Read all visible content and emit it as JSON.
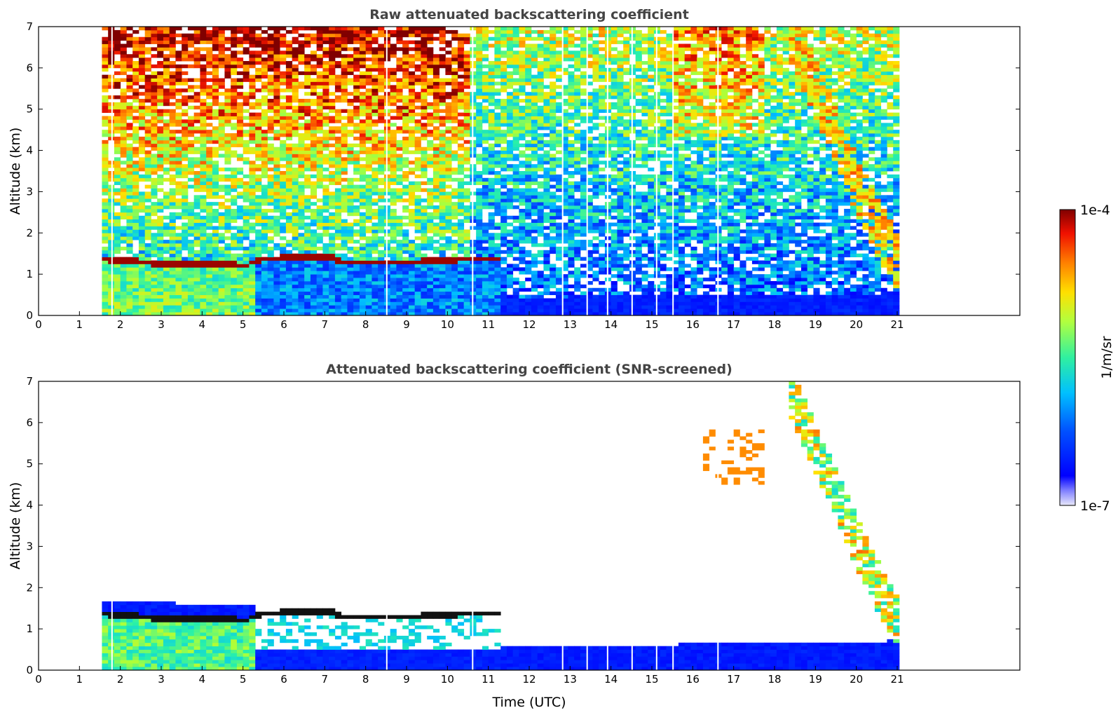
{
  "chart_data": [
    {
      "type": "heatmap",
      "title": "Raw attenuated backscattering coefficient",
      "xlabel": "",
      "ylabel": "Altitude (km)",
      "xlim": [
        0,
        24
      ],
      "ylim": [
        0,
        7
      ],
      "x_ticks": [
        0,
        1,
        2,
        3,
        4,
        5,
        6,
        7,
        8,
        9,
        10,
        11,
        12,
        13,
        14,
        15,
        16,
        17,
        18,
        19,
        20,
        21
      ],
      "y_ticks": [
        0,
        1,
        2,
        3,
        4,
        5,
        6,
        7
      ],
      "data_time_range": [
        1.55,
        21.05
      ],
      "features": {
        "cloud_base_height_km": [
          {
            "t": 1.55,
            "z": 1.38
          },
          {
            "t": 2.5,
            "z": 1.3
          },
          {
            "t": 3.2,
            "z": 1.23
          },
          {
            "t": 4.5,
            "z": 1.27
          },
          {
            "t": 5.1,
            "z": 1.2
          },
          {
            "t": 5.3,
            "z": 1.35
          },
          {
            "t": 6.5,
            "z": 1.42
          },
          {
            "t": 7.0,
            "z": 1.45
          },
          {
            "t": 7.5,
            "z": 1.28
          },
          {
            "t": 8.5,
            "z": 1.3
          },
          {
            "t": 9.2,
            "z": 1.3
          },
          {
            "t": 10.6,
            "z": 1.38
          },
          {
            "t": 11.3,
            "z": 1.38
          }
        ],
        "boundary_layer_top_km": [
          {
            "t": 1.55,
            "z": 1.3
          },
          {
            "t": 5.3,
            "z": 1.2
          },
          {
            "t": 5.5,
            "z": 0.5
          },
          {
            "t": 12.0,
            "z": 0.45
          },
          {
            "t": 18.0,
            "z": 0.5
          },
          {
            "t": 21.05,
            "z": 0.55
          }
        ],
        "descending_cloud_km": [
          {
            "t": 18.4,
            "z": 6.6
          },
          {
            "t": 19.0,
            "z": 5.3
          },
          {
            "t": 19.5,
            "z": 4.2
          },
          {
            "t": 20.0,
            "z": 3.0
          },
          {
            "t": 20.5,
            "z": 2.0
          },
          {
            "t": 21.05,
            "z": 1.0
          }
        ]
      }
    },
    {
      "type": "heatmap",
      "title": "Attenuated backscattering coefficient (SNR-screened)",
      "xlabel": "Time (UTC)",
      "ylabel": "Altitude (km)",
      "xlim": [
        0,
        24
      ],
      "ylim": [
        0,
        7
      ],
      "x_ticks": [
        0,
        1,
        2,
        3,
        4,
        5,
        6,
        7,
        8,
        9,
        10,
        11,
        12,
        13,
        14,
        15,
        16,
        17,
        18,
        19,
        20,
        21
      ],
      "y_ticks": [
        0,
        1,
        2,
        3,
        4,
        5,
        6,
        7
      ],
      "data_time_range": [
        1.55,
        21.05
      ]
    }
  ],
  "colorbar": {
    "label": "1/m/sr",
    "min_label": "1e-7",
    "max_label": "1e-4",
    "scale": "log",
    "colormap": "jet"
  }
}
